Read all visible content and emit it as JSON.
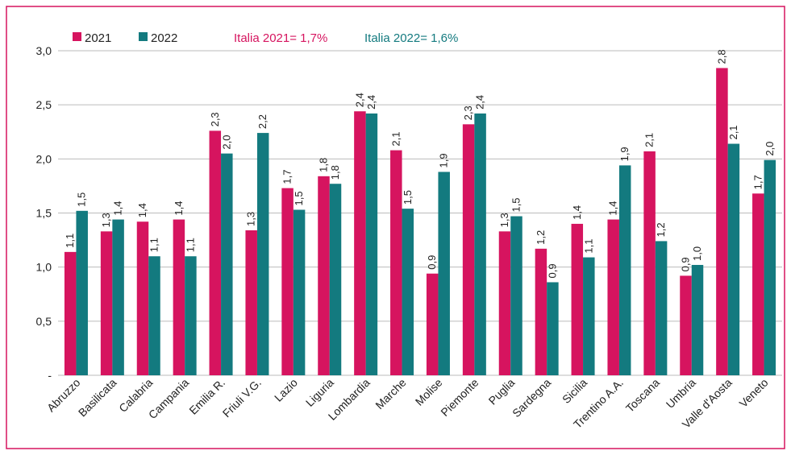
{
  "chart_data": {
    "type": "bar",
    "categories": [
      "Abruzzo",
      "Basilicata",
      "Calabria",
      "Campania",
      "Emilia R.",
      "Friuli V.G.",
      "Lazio",
      "Liguria",
      "Lombardia",
      "Marche",
      "Molise",
      "Piemonte",
      "Puglia",
      "Sardegna",
      "Sicilia",
      "Trentino A.A.",
      "Toscana",
      "Umbria",
      "Valle d'Aosta",
      "Veneto"
    ],
    "series": [
      {
        "name": "2021",
        "color": "#d6145f",
        "values": [
          1.14,
          1.33,
          1.42,
          1.44,
          2.26,
          1.34,
          1.73,
          1.84,
          2.44,
          2.08,
          0.94,
          2.32,
          1.33,
          1.17,
          1.4,
          1.44,
          2.07,
          0.92,
          2.84,
          1.68
        ],
        "value_labels": [
          "1,1",
          "1,3",
          "1,4",
          "1,4",
          "2,3",
          "1,3",
          "1,7",
          "1,8",
          "2,4",
          "2,1",
          "0,9",
          "2,3",
          "1,3",
          "1,2",
          "1,4",
          "1,4",
          "2,1",
          "0,9",
          "2,8",
          "1,7"
        ]
      },
      {
        "name": "2022",
        "color": "#137a7f",
        "values": [
          1.52,
          1.44,
          1.1,
          1.1,
          2.05,
          2.24,
          1.53,
          1.77,
          2.42,
          1.54,
          1.88,
          2.42,
          1.47,
          0.86,
          1.09,
          1.94,
          1.24,
          1.02,
          2.14,
          1.99
        ],
        "value_labels": [
          "1,5",
          "1,4",
          "1,1",
          "1,1",
          "2,0",
          "2,2",
          "1,5",
          "1,8",
          "2,4",
          "1,5",
          "1,9",
          "2,4",
          "1,5",
          "0,9",
          "1,1",
          "1,9",
          "1,2",
          "1,0",
          "2,1",
          "2,0"
        ]
      }
    ],
    "annotations": [
      "Italia 2021= 1,7%",
      "Italia 2022= 1,6%"
    ],
    "ylim": [
      0,
      3
    ],
    "yticks": [
      {
        "value": 0,
        "label": "-"
      },
      {
        "value": 0.5,
        "label": "0,5"
      },
      {
        "value": 1,
        "label": "1,0"
      },
      {
        "value": 1.5,
        "label": "1,5"
      },
      {
        "value": 2,
        "label": "2,0"
      },
      {
        "value": 2.5,
        "label": "2,5"
      },
      {
        "value": 3,
        "label": "3,0"
      }
    ],
    "grid": true
  }
}
